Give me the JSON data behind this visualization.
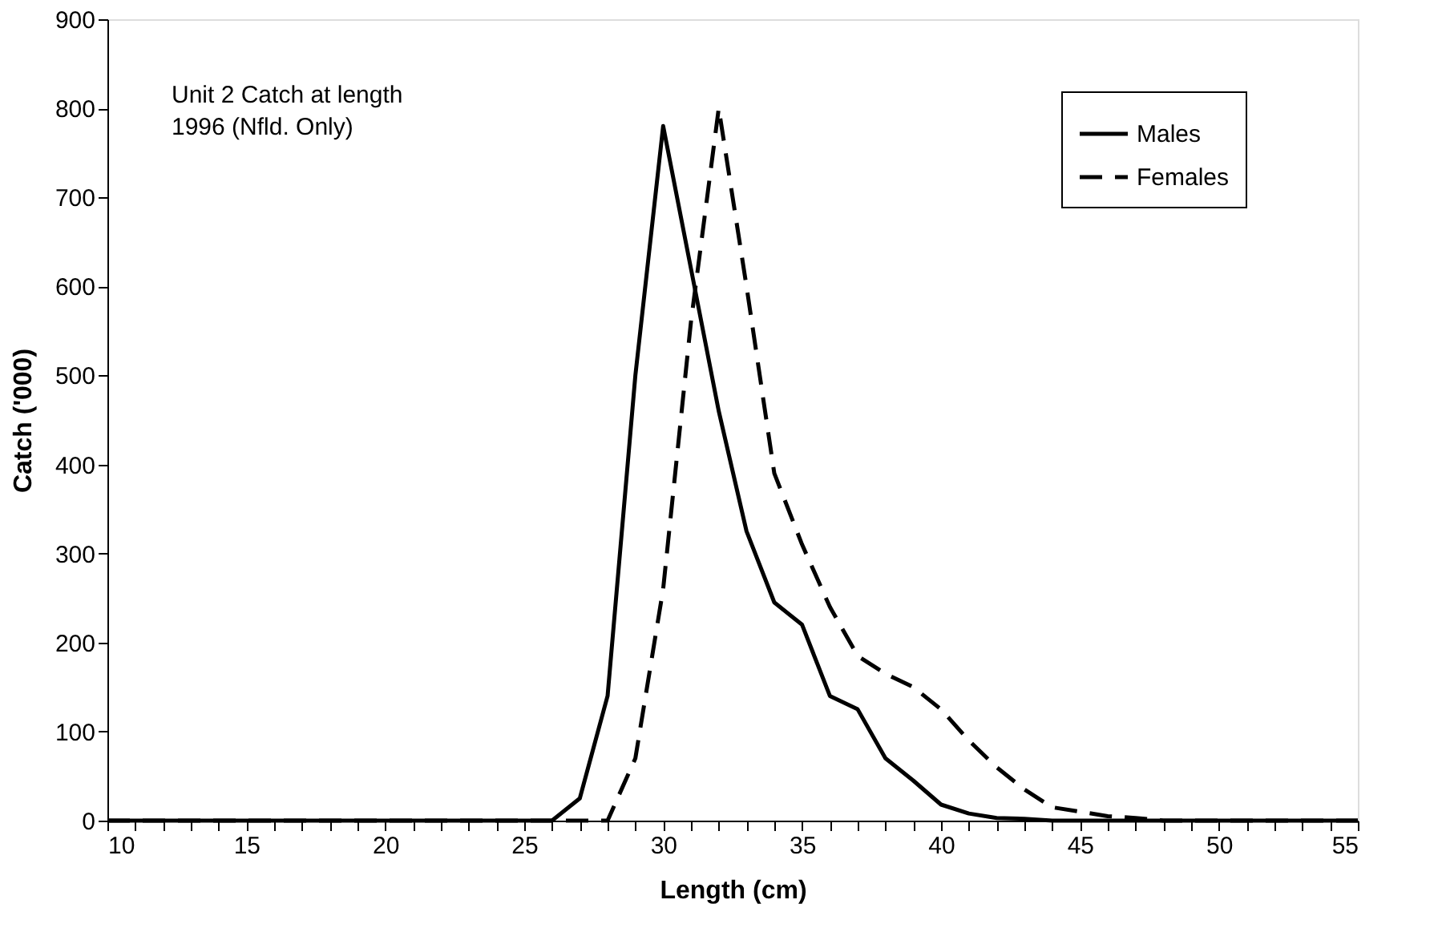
{
  "chart_data": {
    "type": "line",
    "xlabel": "Length (cm)",
    "ylabel": "Catch ('000)",
    "annotations": [
      "Unit 2 Catch at length\n1996 (Nfld. Only)"
    ],
    "x": [
      10,
      11,
      12,
      13,
      14,
      15,
      16,
      17,
      18,
      19,
      20,
      21,
      22,
      23,
      24,
      25,
      26,
      27,
      28,
      29,
      30,
      31,
      32,
      33,
      34,
      35,
      36,
      37,
      38,
      39,
      40,
      41,
      42,
      43,
      44,
      45,
      46,
      47,
      48,
      49,
      50,
      51,
      52,
      53,
      54,
      55
    ],
    "series": [
      {
        "name": "Males",
        "color": "#000000",
        "line_style": "solid",
        "values": [
          0,
          0,
          0,
          0,
          0,
          0,
          0,
          0,
          0,
          0,
          0,
          0,
          0,
          0,
          0,
          0,
          0,
          25,
          140,
          500,
          780,
          620,
          460,
          325,
          245,
          220,
          140,
          125,
          70,
          45,
          18,
          8,
          3,
          2,
          0,
          0,
          0,
          0,
          0,
          0,
          0,
          0,
          0,
          0,
          0,
          0
        ]
      },
      {
        "name": "Females",
        "color": "#000000",
        "line_style": "dashed",
        "values": [
          0,
          0,
          0,
          0,
          0,
          0,
          0,
          0,
          0,
          0,
          0,
          0,
          0,
          0,
          0,
          0,
          0,
          0,
          0,
          70,
          260,
          560,
          800,
          600,
          390,
          310,
          240,
          185,
          165,
          150,
          125,
          90,
          60,
          35,
          15,
          10,
          5,
          3,
          0,
          0,
          0,
          0,
          0,
          0,
          0,
          0
        ]
      }
    ],
    "xlim": [
      10,
      55
    ],
    "xticks": [
      10,
      {
        "value": 11,
        "label": null
      },
      {
        "value": 12,
        "label": null
      },
      {
        "value": 13,
        "label": null
      },
      {
        "value": 14,
        "label": null
      },
      15,
      {
        "value": 16,
        "label": null
      },
      {
        "value": 17,
        "label": null
      },
      {
        "value": 18,
        "label": null
      },
      {
        "value": 19,
        "label": null
      },
      20,
      {
        "value": 21,
        "label": null
      },
      {
        "value": 22,
        "label": null
      },
      {
        "value": 23,
        "label": null
      },
      {
        "value": 24,
        "label": null
      },
      25,
      {
        "value": 26,
        "label": null
      },
      {
        "value": 27,
        "label": null
      },
      {
        "value": 28,
        "label": null
      },
      {
        "value": 29,
        "label": null
      },
      30,
      {
        "value": 31,
        "label": null
      },
      {
        "value": 32,
        "label": null
      },
      {
        "value": 33,
        "label": null
      },
      {
        "value": 34,
        "label": null
      },
      35,
      {
        "value": 36,
        "label": null
      },
      {
        "value": 37,
        "label": null
      },
      {
        "value": 38,
        "label": null
      },
      {
        "value": 39,
        "label": null
      },
      40,
      {
        "value": 41,
        "label": null
      },
      {
        "value": 42,
        "label": null
      },
      {
        "value": 43,
        "label": null
      },
      {
        "value": 44,
        "label": null
      },
      45,
      {
        "value": 46,
        "label": null
      },
      {
        "value": 47,
        "label": null
      },
      {
        "value": 48,
        "label": null
      },
      {
        "value": 49,
        "label": null
      },
      50,
      {
        "value": 51,
        "label": null
      },
      {
        "value": 52,
        "label": null
      },
      {
        "value": 53,
        "label": null
      },
      {
        "value": 54,
        "label": null
      },
      55
    ],
    "ylim": [
      0,
      900
    ],
    "yticks": [
      0,
      100,
      200,
      300,
      400,
      500,
      600,
      700,
      800,
      900
    ],
    "grid": false,
    "legend": "top right",
    "marker": "none"
  }
}
